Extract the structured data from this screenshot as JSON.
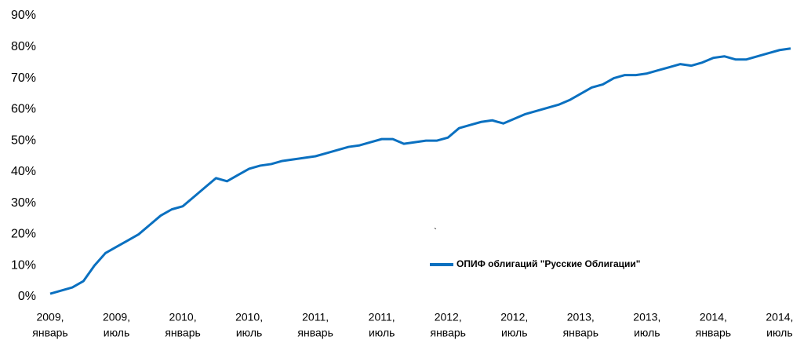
{
  "chart_data": {
    "type": "line",
    "categories": [
      [
        "2009,",
        "январь"
      ],
      null,
      null,
      null,
      null,
      null,
      [
        "2009,",
        "июль"
      ],
      null,
      null,
      null,
      null,
      null,
      [
        "2010,",
        "январь"
      ],
      null,
      null,
      null,
      null,
      null,
      [
        "2010,",
        "июль"
      ],
      null,
      null,
      null,
      null,
      null,
      [
        "2011,",
        "январь"
      ],
      null,
      null,
      null,
      null,
      null,
      [
        "2011,",
        "июль"
      ],
      null,
      null,
      null,
      null,
      null,
      [
        "2012,",
        "январь"
      ],
      null,
      null,
      null,
      null,
      null,
      [
        "2012,",
        "июль"
      ],
      null,
      null,
      null,
      null,
      null,
      [
        "2013,",
        "январь"
      ],
      null,
      null,
      null,
      null,
      null,
      [
        "2013,",
        "июль"
      ],
      null,
      null,
      null,
      null,
      null,
      [
        "2014,",
        "январь"
      ],
      null,
      null,
      null,
      null,
      null,
      [
        "2014,",
        "июль"
      ],
      null
    ],
    "series": [
      {
        "name": "ОПИФ облигаций \"Русские Облигации\"",
        "color": "#0a70c0",
        "values": [
          1,
          2,
          3,
          5,
          10,
          14,
          16,
          18,
          20,
          23,
          26,
          28,
          29,
          32,
          35,
          38,
          37,
          39,
          41,
          42,
          42.5,
          43.5,
          44,
          44.5,
          45,
          46,
          47,
          48,
          48.5,
          49.5,
          50.5,
          50.5,
          49,
          49.5,
          50,
          50,
          51,
          54,
          55,
          56,
          56.5,
          55.5,
          57,
          58.5,
          59.5,
          60.5,
          61.5,
          63,
          65,
          67,
          68,
          70,
          71,
          71,
          71.5,
          72.5,
          73.5,
          74.5,
          74,
          75,
          76.5,
          77,
          76,
          76,
          77,
          78,
          79,
          79.5
        ]
      }
    ],
    "ylim": [
      0,
      90
    ],
    "yticks": [
      {
        "value": 0,
        "label": "0%"
      },
      {
        "value": 10,
        "label": "10%"
      },
      {
        "value": 20,
        "label": "20%"
      },
      {
        "value": 30,
        "label": "30%"
      },
      {
        "value": 40,
        "label": "40%"
      },
      {
        "value": 50,
        "label": "50%"
      },
      {
        "value": 60,
        "label": "60%"
      },
      {
        "value": 70,
        "label": "70%"
      },
      {
        "value": 80,
        "label": "80%"
      },
      {
        "value": 90,
        "label": "90%"
      }
    ],
    "grid": false,
    "annotation": "`"
  }
}
